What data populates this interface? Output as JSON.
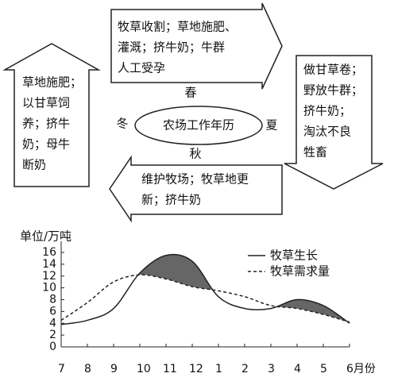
{
  "diagram": {
    "center": "农场工作年历",
    "seasons": {
      "spring": "春",
      "summer": "夏",
      "autumn": "秋",
      "winter": "冬"
    },
    "spring_work": [
      "牧草收割；草地施肥、",
      "灌溉；挤牛奶；牛群",
      "人工受孕"
    ],
    "summer_work": [
      "做甘草卷；",
      "野放牛群；",
      "挤牛奶；",
      "淘汰不良",
      "牲畜"
    ],
    "autumn_work": [
      "维护牧场；牧草地更",
      "新；挤牛奶"
    ],
    "winter_work": [
      "草地施肥；",
      "以甘草饲",
      "养；挤牛",
      "奶；母牛",
      "断奶"
    ]
  },
  "chart_data": {
    "type": "line",
    "y_label": "单位/万吨",
    "categories": [
      "7",
      "8",
      "9",
      "10",
      "11",
      "12",
      "1",
      "2",
      "3",
      "4",
      "5",
      "6月份"
    ],
    "series": [
      {
        "name": "牧草生长",
        "color": "#222222",
        "dash": false,
        "values": [
          3.8,
          4.5,
          6.5,
          12.5,
          15.5,
          14.5,
          8.5,
          6.5,
          6.5,
          8.0,
          7.0,
          4.0
        ]
      },
      {
        "name": "牧草需求量",
        "color": "#222222",
        "dash": true,
        "values": [
          4.5,
          7.5,
          11.0,
          12.2,
          11.5,
          10.2,
          9.5,
          8.5,
          7.0,
          6.5,
          5.5,
          4.2
        ]
      }
    ],
    "surplus_color": "#666666",
    "ylim": [
      0,
      16
    ],
    "yticks": [
      0,
      2,
      4,
      6,
      8,
      10,
      12,
      14,
      16
    ]
  }
}
